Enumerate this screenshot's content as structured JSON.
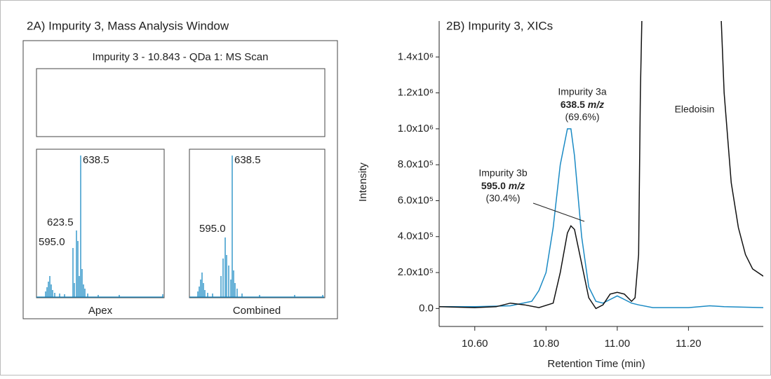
{
  "panel_a": {
    "title": "2A) Impurity 3, Mass Analysis Window",
    "scan_title": "Impurity 3 - 10.843 - QDa 1: MS Scan",
    "apex": {
      "label": "Apex",
      "peak_labels": [
        "638.5",
        "623.5",
        "595.0"
      ]
    },
    "combined": {
      "label": "Combined",
      "peak_labels": [
        "638.5",
        "595.0"
      ]
    }
  },
  "chart_data": {
    "type": "line",
    "title": "2B) Impurity 3, XICs",
    "x_label": "Retention Time (min)",
    "y_label": "Intensity",
    "xlim": [
      10.5,
      11.41
    ],
    "ylim": [
      -100000,
      1600000
    ],
    "xticks": [
      {
        "value": 10.6,
        "label": "10.60"
      },
      {
        "value": 10.8,
        "label": "10.80"
      },
      {
        "value": 11.0,
        "label": "11.00"
      },
      {
        "value": 11.2,
        "label": "11.20"
      }
    ],
    "yticks": [
      {
        "value": 0,
        "label": "0.0"
      },
      {
        "value": 200000,
        "label": "2.0x10⁵"
      },
      {
        "value": 400000,
        "label": "4.0x10⁵"
      },
      {
        "value": 600000,
        "label": "6.0x10⁵"
      },
      {
        "value": 800000,
        "label": "8.0x10⁵"
      },
      {
        "value": 1000000,
        "label": "1.0x10⁶"
      },
      {
        "value": 1200000,
        "label": "1.2x10⁶"
      },
      {
        "value": 1400000,
        "label": "1.4x10⁶"
      }
    ],
    "series": [
      {
        "color": "#1a8ac4",
        "x": [
          10.5,
          10.6,
          10.7,
          10.76,
          10.78,
          10.8,
          10.82,
          10.84,
          10.86,
          10.87,
          10.88,
          10.9,
          10.92,
          10.94,
          10.96,
          10.98,
          11.0,
          11.02,
          11.04,
          11.06,
          11.1,
          11.2,
          11.26,
          11.3,
          11.41
        ],
        "values": [
          10000,
          10000,
          15000,
          40000,
          100000,
          200000,
          450000,
          800000,
          1000000,
          1000000,
          850000,
          400000,
          120000,
          40000,
          30000,
          50000,
          70000,
          50000,
          30000,
          20000,
          5000,
          5000,
          15000,
          10000,
          5000
        ]
      },
      {
        "color": "#111111",
        "x": [
          10.5,
          10.6,
          10.66,
          10.7,
          10.74,
          10.78,
          10.82,
          10.84,
          10.86,
          10.87,
          10.88,
          10.9,
          10.92,
          10.94,
          10.96,
          10.98,
          11.0,
          11.02,
          11.04,
          11.05,
          11.06,
          11.065,
          11.07,
          11.29,
          11.3,
          11.32,
          11.34,
          11.36,
          11.38,
          11.41
        ],
        "values": [
          10000,
          5000,
          10000,
          30000,
          20000,
          5000,
          30000,
          200000,
          420000,
          460000,
          440000,
          250000,
          60000,
          0,
          20000,
          80000,
          90000,
          80000,
          40000,
          60000,
          300000,
          1200000,
          1700000,
          1700000,
          1200000,
          700000,
          450000,
          300000,
          220000,
          180000
        ]
      }
    ],
    "annotations": [
      {
        "name": "Impurity 3a",
        "mass": "638.5",
        "unit": "m/z",
        "share": "(69.6%)"
      },
      {
        "name": "Impurity 3b",
        "mass": "595.0",
        "unit": "m/z",
        "share": "(30.4%)"
      },
      {
        "name": "Eledoisin"
      }
    ]
  }
}
